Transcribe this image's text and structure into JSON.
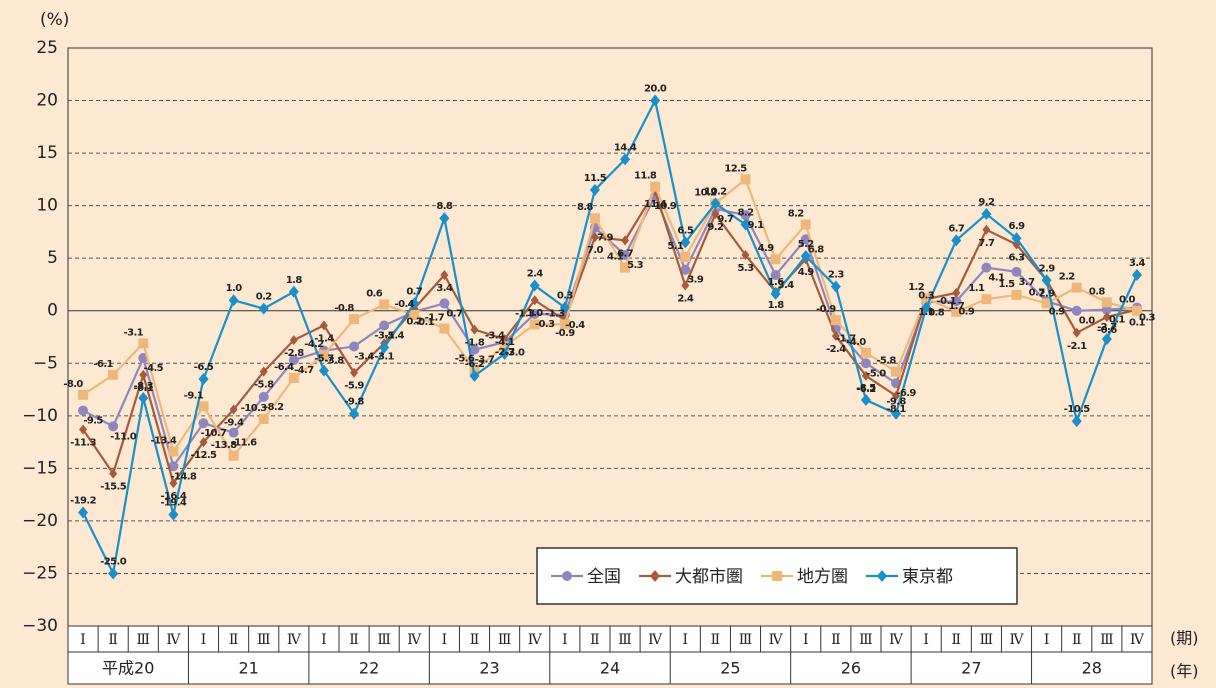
{
  "chart_data": {
    "type": "line",
    "y_unit": "(%)",
    "x_unit_quarter": "(期)",
    "x_unit_year": "(年)",
    "categories": [
      "Ⅰ",
      "Ⅱ",
      "Ⅲ",
      "Ⅳ",
      "Ⅰ",
      "Ⅱ",
      "Ⅲ",
      "Ⅳ",
      "Ⅰ",
      "Ⅱ",
      "Ⅲ",
      "Ⅳ",
      "Ⅰ",
      "Ⅱ",
      "Ⅲ",
      "Ⅳ",
      "Ⅰ",
      "Ⅱ",
      "Ⅲ",
      "Ⅳ",
      "Ⅰ",
      "Ⅱ",
      "Ⅲ",
      "Ⅳ",
      "Ⅰ",
      "Ⅱ",
      "Ⅲ",
      "Ⅳ",
      "Ⅰ",
      "Ⅱ",
      "Ⅲ",
      "Ⅳ",
      "Ⅰ",
      "Ⅱ",
      "Ⅲ",
      "Ⅳ"
    ],
    "years": [
      "平成20",
      "21",
      "22",
      "23",
      "24",
      "25",
      "26",
      "27",
      "28"
    ],
    "ylim": [
      -30,
      25
    ],
    "yticks": [
      {
        "value": -30,
        "label": "−30"
      },
      {
        "value": -25,
        "label": "−25"
      },
      {
        "value": -20,
        "label": "−20"
      },
      {
        "value": -15,
        "label": "−15"
      },
      {
        "value": -10,
        "label": "−10"
      },
      {
        "value": -5,
        "label": "−5"
      },
      0,
      5,
      10,
      15,
      20,
      25
    ],
    "grid": true,
    "series": [
      {
        "name": "全国",
        "color": "#8f86c0",
        "marker": "circle",
        "values": [
          -9.5,
          -11.0,
          -4.5,
          -14.8,
          -10.7,
          -11.6,
          -8.2,
          -4.7,
          -3.8,
          -3.4,
          -1.4,
          -0.1,
          0.7,
          -3.7,
          -3.0,
          -0.3,
          -0.4,
          7.9,
          5.3,
          10.9,
          3.9,
          9.7,
          9.1,
          3.4,
          6.8,
          -1.7,
          -5.0,
          -6.9,
          0.8,
          0.9,
          4.1,
          3.7,
          0.9,
          0.0,
          0.1,
          0.3
        ],
        "value_labels": [
          "-9.5",
          "-11.0",
          "-4.5",
          "-14.8",
          "-10.7",
          "-11.6",
          "-8.2",
          "-4.7",
          "-3.8",
          "-3.4",
          "-1.4",
          "-0.1",
          "0.7",
          "-3.7",
          "-3.0",
          "-0.3",
          "-0.4",
          "7.9",
          "5.3",
          "10.9",
          "3.9",
          "9.7",
          "9.1",
          "3.4",
          "6.8",
          "-1.7",
          "-5.0",
          "-6.9",
          "0.8",
          "0.9",
          "4.1",
          "3.7",
          "0.9",
          "0.0",
          "0.1",
          "0.3"
        ]
      },
      {
        "name": "大都市圏",
        "color": "#a65b3a",
        "marker": "diamond",
        "values": [
          -11.3,
          -15.5,
          -6.1,
          -16.4,
          -12.5,
          -9.4,
          -5.8,
          -2.8,
          -1.4,
          -5.9,
          -3.1,
          0.2,
          3.4,
          -1.8,
          -2.7,
          1.0,
          -0.9,
          7.0,
          6.7,
          11.4,
          2.4,
          9.2,
          5.3,
          1.8,
          4.9,
          -2.4,
          -6.2,
          -8.1,
          1.1,
          1.7,
          7.7,
          6.3,
          2.9,
          -2.1,
          -0.6,
          0.1
        ],
        "value_labels": [
          "-11.3",
          "-15.5",
          "-6.1",
          "-16.4",
          "-12.5",
          "-9.4",
          "-5.8",
          "-2.8",
          "-1.4",
          "-5.9",
          "-3.1",
          "0.2",
          "3.4",
          "-1.8",
          "-2.7",
          "1.0",
          "-0.9",
          "7.0",
          "6.7",
          "11.4",
          "2.4",
          "9.2",
          "5.3",
          "1.8",
          "4.9",
          "-2.4",
          "-6.2",
          "-8.1",
          "1.1",
          "1.7",
          "7.7",
          "6.3",
          "2.9",
          "-2.1",
          "-0.6",
          "0.1"
        ]
      },
      {
        "name": "地方圏",
        "color": "#f0b77a",
        "marker": "square",
        "values": [
          -8.0,
          -6.1,
          -3.1,
          -13.4,
          -9.1,
          -13.8,
          -10.3,
          -6.4,
          -4.2,
          -0.8,
          0.6,
          -0.4,
          -1.7,
          -5.6,
          -3.4,
          -1.3,
          -1.3,
          8.8,
          4.1,
          11.8,
          5.1,
          10.2,
          12.5,
          4.9,
          8.2,
          -0.9,
          -4.0,
          -5.8,
          1.2,
          -0.1,
          1.1,
          1.5,
          0.7,
          2.2,
          0.8,
          0.0
        ],
        "value_labels": [
          "-8.0",
          "-6.1",
          "-3.1",
          "-13.4",
          "-9.1",
          "-13.8",
          "-10.3",
          "-6.4",
          "-4.2",
          "-0.8",
          "0.6",
          "-0.4",
          "-1.7",
          "-5.6",
          "-3.4",
          "-1.3",
          "-1.3",
          "8.8",
          "4.1",
          "11.8",
          "5.1",
          "10.2",
          "12.5",
          "4.9",
          "8.2",
          "-0.9",
          "-4.0",
          "-5.8",
          "1.2",
          "-0.1",
          "1.1",
          "1.5",
          "0.7",
          "2.2",
          "0.8",
          "0.0"
        ]
      },
      {
        "name": "東京都",
        "color": "#1a8fc9",
        "marker": "diamond",
        "values": [
          -19.2,
          -25.0,
          -8.3,
          -19.4,
          -6.5,
          1.0,
          0.2,
          1.8,
          -5.7,
          -9.8,
          -3.5,
          0.7,
          8.8,
          -6.2,
          -4.1,
          2.4,
          0.3,
          11.5,
          14.4,
          20.0,
          6.5,
          10.2,
          8.2,
          1.6,
          5.2,
          2.3,
          -8.5,
          -9.8,
          0.3,
          6.7,
          9.2,
          6.9,
          2.9,
          -10.5,
          -2.7,
          3.4
        ],
        "value_labels": [
          "-19.2",
          "-25.0",
          "-8.3",
          "-19.4",
          "-6.5",
          "1.0",
          "0.2",
          "1.8",
          "-5.7",
          "-9.8",
          "-3.5",
          "0.7",
          "8.8",
          "-6.2",
          "-4.1",
          "2.4",
          "0.3",
          "11.5",
          "14.4",
          "20.0",
          "6.5",
          "10.2",
          "8.2",
          "1.6",
          "5.2",
          "2.3",
          "-8.5",
          "-9.8",
          "0.3",
          "6.7",
          "9.2",
          "6.9",
          "2.9",
          "-10.5",
          "-2.7",
          "3.4"
        ]
      }
    ]
  }
}
